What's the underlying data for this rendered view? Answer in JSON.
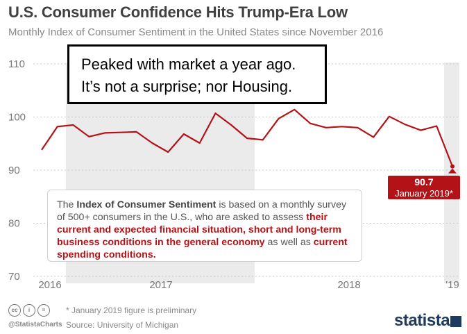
{
  "title": "U.S. Consumer Confidence Hits Trump-Era Low",
  "subtitle": "Monthly Index of Consumer Sentiment in the United States since November 2016",
  "overlay": {
    "line1": "Peaked with market a year ago.",
    "line2": "It’s not a surprise; nor Housing."
  },
  "note": {
    "p1": "The ",
    "p2": "Index of Consumer Sentiment",
    "p3": " is based on a monthly survey of 500+ consumers in the U.S., who are asked to assess ",
    "p4": "their current and expected financial situation, short and long-term business conditions in the general economy",
    "p5": " as well as ",
    "p6": "current spending conditions."
  },
  "callout": {
    "value": "90.7",
    "date": "January 2019*"
  },
  "footer": {
    "footnote": "* January 2019 figure is preliminary",
    "source": "Source: University of Michigan",
    "handle": "@StatistaCharts",
    "brand": "statista",
    "cc_icons": [
      "cc",
      "i",
      "="
    ]
  },
  "colors": {
    "line": "#b31217",
    "band": "#ebebeb",
    "grid": "#c8c8c8"
  },
  "chart_data": {
    "type": "line",
    "title": "U.S. Consumer Confidence Hits Trump-Era Low",
    "subtitle": "Monthly Index of Consumer Sentiment in the United States since November 2016",
    "ylim": [
      70,
      110
    ],
    "yticks": [
      70,
      80,
      90,
      100,
      110
    ],
    "xtick_labels": [
      "2016",
      "2017",
      "2018",
      "'19"
    ],
    "grid": true,
    "shaded_periods": [
      "2017",
      "'19"
    ],
    "series": [
      {
        "values": [
          93.8,
          98.2,
          98.5,
          96.3,
          97.0,
          97.1,
          97.2,
          95.1,
          93.4,
          96.8,
          95.1,
          100.7,
          98.5,
          96.0,
          95.7,
          99.7,
          101.4,
          98.8,
          98.0,
          98.2,
          98.0,
          96.2,
          100.1,
          98.6,
          97.5,
          98.3,
          90.7
        ]
      }
    ]
  }
}
